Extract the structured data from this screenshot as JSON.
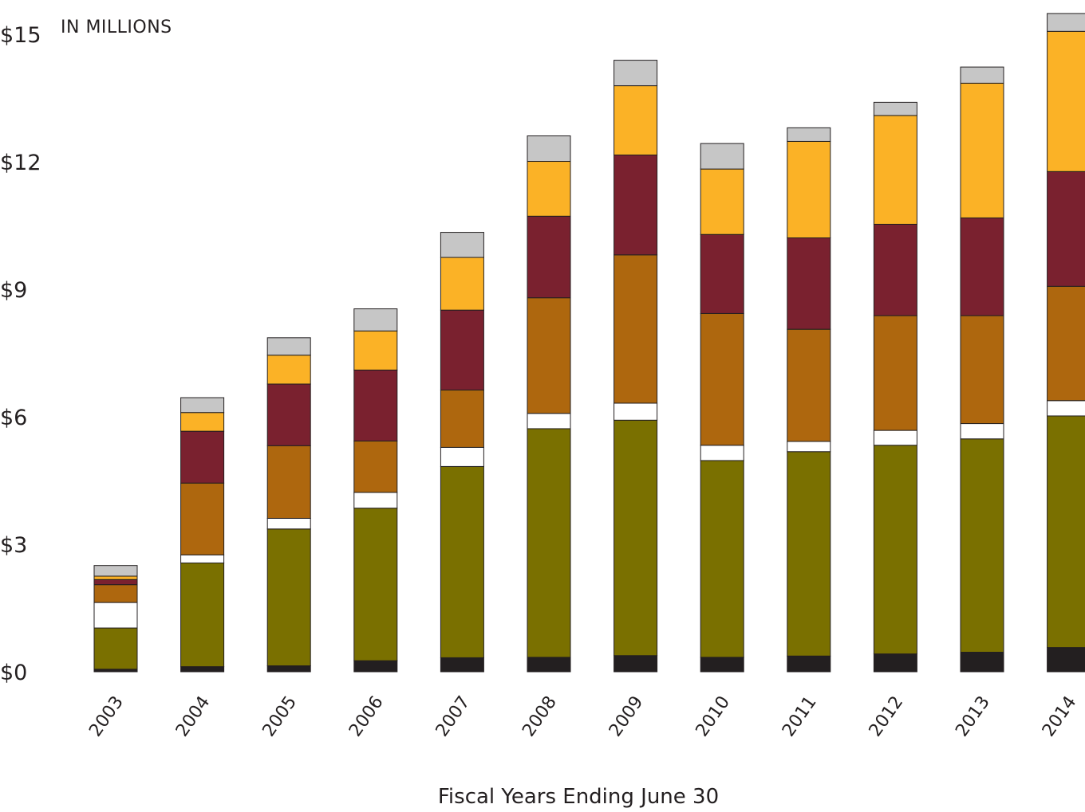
{
  "chart_data": {
    "type": "bar",
    "stacked": true,
    "units_label": "IN MILLIONS",
    "xlabel": "Fiscal Years Ending June 30",
    "ylabel": "",
    "ylim": [
      0,
      15.8
    ],
    "yticks": [
      0,
      3,
      6,
      9,
      12,
      15
    ],
    "ytick_labels": [
      "$0",
      "$3",
      "$6",
      "$9",
      "$12",
      "$15"
    ],
    "categories": [
      "2003",
      "2004",
      "2005",
      "2006",
      "2007",
      "2008",
      "2009",
      "2010",
      "2011",
      "2012",
      "2013",
      "2014"
    ],
    "series": [
      {
        "color": "#231f20",
        "values": [
          0.06,
          0.12,
          0.14,
          0.26,
          0.33,
          0.34,
          0.38,
          0.34,
          0.37,
          0.42,
          0.46,
          0.57
        ]
      },
      {
        "color": "#7a7000",
        "values": [
          0.97,
          2.44,
          3.22,
          3.59,
          4.5,
          5.38,
          5.54,
          4.63,
          4.81,
          4.91,
          5.02,
          5.45
        ]
      },
      {
        "color": "#ffffff",
        "values": [
          0.6,
          0.19,
          0.25,
          0.37,
          0.45,
          0.36,
          0.4,
          0.36,
          0.24,
          0.35,
          0.36,
          0.36
        ]
      },
      {
        "color": "#ae670e",
        "values": [
          0.42,
          1.69,
          1.71,
          1.21,
          1.35,
          2.72,
          3.49,
          3.1,
          2.64,
          2.7,
          2.54,
          2.69
        ]
      },
      {
        "color": "#7a212f",
        "values": [
          0.12,
          1.22,
          1.45,
          1.67,
          1.88,
          1.92,
          2.35,
          1.86,
          2.15,
          2.15,
          2.3,
          2.7
        ]
      },
      {
        "color": "#fbb226",
        "values": [
          0.08,
          0.44,
          0.68,
          0.92,
          1.24,
          1.29,
          1.63,
          1.54,
          2.27,
          2.56,
          3.17,
          3.3
        ]
      },
      {
        "color": "#c6c6c6",
        "values": [
          0.25,
          0.35,
          0.41,
          0.52,
          0.59,
          0.6,
          0.6,
          0.6,
          0.32,
          0.31,
          0.38,
          0.42
        ]
      }
    ],
    "grid": false,
    "legend": "none"
  }
}
